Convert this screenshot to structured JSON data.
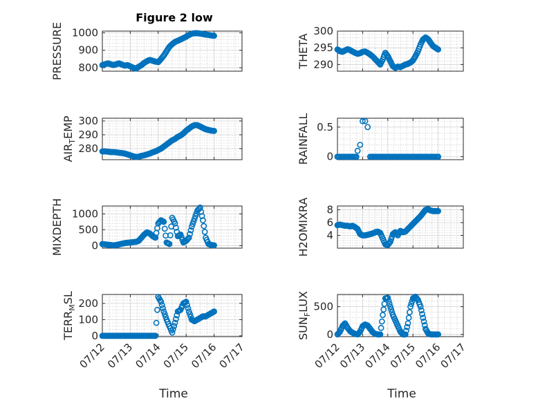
{
  "figure": {
    "title": "Figure 2 low",
    "marker_color": "#0072BD",
    "axis_color": "#262626",
    "grid_color": "#cfcfcf"
  },
  "chart_data": [
    {
      "type": "scatter",
      "panel": "top-left",
      "ylabel": "PRESSURE",
      "xlim": [
        "07/12",
        "07/17"
      ],
      "ylim": [
        780,
        1010
      ],
      "yticks": [
        800,
        900,
        1000
      ],
      "x_tick_labels": [],
      "grid": true,
      "x": [
        12.0,
        12.1,
        12.2,
        12.3,
        12.4,
        12.5,
        12.6,
        12.7,
        12.8,
        12.9,
        13.0,
        13.1,
        13.2,
        13.3,
        13.4,
        13.5,
        13.6,
        13.7,
        13.8,
        13.9,
        14.0,
        14.1,
        14.2,
        14.3,
        14.4,
        14.5,
        14.6,
        14.7,
        14.8,
        14.9,
        15.0,
        15.1,
        15.2,
        15.3,
        15.4,
        15.5,
        15.6,
        15.7,
        15.8,
        15.9,
        16.0
      ],
      "y": [
        815,
        820,
        825,
        820,
        815,
        820,
        825,
        818,
        812,
        815,
        808,
        800,
        795,
        805,
        815,
        828,
        838,
        845,
        840,
        835,
        832,
        850,
        870,
        895,
        920,
        935,
        948,
        955,
        962,
        970,
        978,
        988,
        995,
        998,
        998,
        996,
        993,
        990,
        988,
        985,
        983
      ]
    },
    {
      "type": "scatter",
      "panel": "top-right",
      "ylabel": "THETA",
      "xlim": [
        "07/12",
        "07/17"
      ],
      "ylim": [
        288,
        300
      ],
      "yticks": [
        290,
        295,
        300
      ],
      "x_tick_labels": [],
      "grid": true,
      "x": [
        12.0,
        12.1,
        12.2,
        12.3,
        12.4,
        12.5,
        12.6,
        12.7,
        12.8,
        12.9,
        13.0,
        13.1,
        13.2,
        13.3,
        13.4,
        13.5,
        13.6,
        13.7,
        13.8,
        13.9,
        14.0,
        14.1,
        14.2,
        14.3,
        14.4,
        14.5,
        14.6,
        14.7,
        14.8,
        14.9,
        15.0,
        15.1,
        15.2,
        15.3,
        15.4,
        15.5,
        15.6,
        15.7,
        15.8,
        15.9,
        16.0
      ],
      "y": [
        294.5,
        294.0,
        293.8,
        294.2,
        294.6,
        294.3,
        293.9,
        293.5,
        293.2,
        293.4,
        293.8,
        293.9,
        293.5,
        293.0,
        292.4,
        291.6,
        290.8,
        290.0,
        291.5,
        293.5,
        292.5,
        291.0,
        289.5,
        289.0,
        289.4,
        289.2,
        289.6,
        290.0,
        290.2,
        290.6,
        291.2,
        292.5,
        294.0,
        296.0,
        297.5,
        298.1,
        297.6,
        296.5,
        295.5,
        295.0,
        294.5
      ]
    },
    {
      "type": "scatter",
      "panel": "second-left",
      "ylabel": "AIR_TEMP",
      "xlim": [
        "07/12",
        "07/17"
      ],
      "ylim": [
        272,
        302
      ],
      "yticks": [
        280,
        290,
        300
      ],
      "x_tick_labels": [],
      "grid": true,
      "x": [
        12.0,
        12.1,
        12.2,
        12.3,
        12.4,
        12.5,
        12.6,
        12.7,
        12.8,
        12.9,
        13.0,
        13.1,
        13.2,
        13.3,
        13.4,
        13.5,
        13.6,
        13.7,
        13.8,
        13.9,
        14.0,
        14.1,
        14.2,
        14.3,
        14.4,
        14.5,
        14.6,
        14.7,
        14.8,
        14.9,
        15.0,
        15.1,
        15.2,
        15.3,
        15.4,
        15.5,
        15.6,
        15.7,
        15.8,
        15.9,
        16.0
      ],
      "y": [
        278.0,
        278.0,
        277.8,
        277.5,
        277.5,
        277.3,
        277.0,
        276.8,
        276.5,
        275.8,
        275.2,
        274.5,
        274.0,
        274.2,
        274.8,
        275.2,
        275.8,
        276.5,
        277.3,
        278.0,
        279.0,
        280.0,
        281.5,
        283.0,
        284.5,
        286.0,
        287.0,
        288.5,
        289.5,
        291.0,
        293.0,
        294.5,
        296.0,
        297.0,
        297.0,
        296.0,
        295.0,
        294.0,
        293.5,
        293.0,
        292.8
      ]
    },
    {
      "type": "scatter",
      "panel": "second-right",
      "ylabel": "RAINFALL",
      "xlim": [
        "07/12",
        "07/17"
      ],
      "ylim": [
        -0.05,
        0.65
      ],
      "yticks": [
        0,
        0.5
      ],
      "x_tick_labels": [],
      "grid": true,
      "x": [
        12.0,
        12.1,
        12.2,
        12.3,
        12.4,
        12.5,
        12.6,
        12.7,
        12.8,
        12.9,
        13.0,
        13.1,
        13.2,
        13.3,
        13.4,
        13.5,
        13.6,
        13.7,
        13.8,
        13.9,
        14.0,
        14.1,
        14.2,
        14.3,
        14.4,
        14.5,
        14.6,
        14.7,
        14.8,
        14.9,
        15.0,
        15.1,
        15.2,
        15.3,
        15.4,
        15.5,
        15.6,
        15.7,
        15.8,
        15.9,
        16.0
      ],
      "y": [
        0,
        0,
        0,
        0,
        0,
        0,
        0,
        0,
        0.1,
        0.2,
        0.6,
        0.6,
        0.5,
        0,
        0,
        0,
        0,
        0,
        0,
        0,
        0,
        0,
        0,
        0,
        0,
        0,
        0,
        0,
        0,
        0,
        0,
        0,
        0,
        0,
        0,
        0,
        0,
        0,
        0,
        0,
        0
      ]
    },
    {
      "type": "scatter",
      "panel": "third-left",
      "ylabel": "MIXDEPTH",
      "xlim": [
        "07/12",
        "07/17"
      ],
      "ylim": [
        -80,
        1250
      ],
      "yticks": [
        0,
        500,
        1000
      ],
      "x_tick_labels": [],
      "grid": true,
      "x": [
        12.0,
        12.1,
        12.2,
        12.3,
        12.4,
        12.5,
        12.6,
        12.7,
        12.8,
        12.9,
        13.0,
        13.1,
        13.2,
        13.3,
        13.4,
        13.5,
        13.6,
        13.7,
        13.8,
        13.9,
        14.0,
        14.1,
        14.2,
        14.3,
        14.4,
        14.5,
        14.6,
        14.7,
        14.8,
        14.9,
        15.0,
        15.1,
        15.2,
        15.3,
        15.4,
        15.5,
        15.6,
        15.7,
        15.8,
        15.9,
        16.0
      ],
      "y": [
        50,
        40,
        30,
        20,
        10,
        20,
        40,
        60,
        80,
        90,
        100,
        110,
        120,
        150,
        250,
        350,
        420,
        380,
        300,
        250,
        700,
        800,
        750,
        100,
        50,
        880,
        700,
        300,
        350,
        100,
        150,
        250,
        600,
        850,
        1100,
        1200,
        800,
        250,
        50,
        20,
        10
      ]
    },
    {
      "type": "scatter",
      "panel": "third-right",
      "ylabel": "H2OMIXRA",
      "xlim": [
        "07/12",
        "07/17"
      ],
      "ylim": [
        2.0,
        8.6
      ],
      "yticks": [
        4,
        6,
        8
      ],
      "x_tick_labels": [],
      "grid": true,
      "x": [
        12.0,
        12.1,
        12.2,
        12.3,
        12.4,
        12.5,
        12.6,
        12.7,
        12.8,
        12.9,
        13.0,
        13.1,
        13.2,
        13.3,
        13.4,
        13.5,
        13.6,
        13.7,
        13.8,
        13.9,
        14.0,
        14.1,
        14.2,
        14.3,
        14.4,
        14.5,
        14.6,
        14.7,
        14.8,
        14.9,
        15.0,
        15.1,
        15.2,
        15.3,
        15.4,
        15.5,
        15.6,
        15.7,
        15.8,
        15.9,
        16.0
      ],
      "y": [
        5.6,
        5.7,
        5.6,
        5.5,
        5.5,
        5.4,
        5.5,
        5.3,
        5.0,
        4.2,
        4.0,
        4.0,
        4.1,
        4.2,
        4.3,
        4.5,
        4.6,
        4.4,
        3.5,
        2.6,
        2.5,
        3.0,
        4.2,
        4.5,
        4.0,
        4.7,
        4.5,
        4.6,
        5.0,
        5.4,
        5.8,
        6.2,
        6.6,
        7.0,
        7.5,
        8.0,
        8.1,
        7.9,
        7.8,
        7.8,
        7.8
      ]
    },
    {
      "type": "scatter",
      "panel": "bottom-left",
      "ylabel": "TERR_MSL",
      "xlim": [
        "07/12",
        "07/17"
      ],
      "ylim": [
        -5,
        255
      ],
      "yticks": [
        0,
        100,
        200
      ],
      "x_tick_labels": [
        "07/12",
        "07/13",
        "07/14",
        "07/15",
        "07/16",
        "07/17"
      ],
      "xlabel": "Time",
      "grid": true,
      "x": [
        12.0,
        12.1,
        12.2,
        12.3,
        12.4,
        12.5,
        12.6,
        12.7,
        12.8,
        12.9,
        13.0,
        13.1,
        13.2,
        13.3,
        13.4,
        13.5,
        13.6,
        13.7,
        13.8,
        13.9,
        14.0,
        14.1,
        14.2,
        14.3,
        14.4,
        14.5,
        14.6,
        14.7,
        14.8,
        14.9,
        15.0,
        15.1,
        15.2,
        15.3,
        15.4,
        15.5,
        15.6,
        15.7,
        15.8,
        15.9,
        16.0
      ],
      "y": [
        0,
        0,
        0,
        0,
        0,
        0,
        0,
        0,
        0,
        0,
        0,
        0,
        0,
        0,
        0,
        0,
        0,
        0,
        0,
        0,
        240,
        210,
        150,
        100,
        60,
        20,
        80,
        150,
        160,
        200,
        210,
        150,
        100,
        90,
        100,
        110,
        120,
        120,
        130,
        140,
        150
      ]
    },
    {
      "type": "scatter",
      "panel": "bottom-right",
      "ylabel": "SUN_FLUX",
      "xlim": [
        "07/12",
        "07/17"
      ],
      "ylim": [
        -40,
        720
      ],
      "yticks": [
        0,
        500
      ],
      "x_tick_labels": [
        "07/12",
        "07/13",
        "07/14",
        "07/15",
        "07/16",
        "07/17"
      ],
      "xlabel": "Time",
      "grid": true,
      "x": [
        12.0,
        12.1,
        12.2,
        12.3,
        12.4,
        12.5,
        12.6,
        12.7,
        12.8,
        12.9,
        13.0,
        13.1,
        13.2,
        13.3,
        13.4,
        13.5,
        13.6,
        13.7,
        13.8,
        13.9,
        14.0,
        14.1,
        14.2,
        14.3,
        14.4,
        14.5,
        14.6,
        14.7,
        14.8,
        14.9,
        15.0,
        15.1,
        15.2,
        15.3,
        15.4,
        15.5,
        15.6,
        15.7,
        15.8,
        15.9,
        16.0
      ],
      "y": [
        0,
        50,
        150,
        200,
        120,
        60,
        30,
        10,
        0,
        50,
        150,
        180,
        160,
        100,
        40,
        10,
        0,
        0,
        350,
        650,
        660,
        500,
        350,
        250,
        150,
        50,
        0,
        0,
        200,
        500,
        650,
        680,
        620,
        500,
        300,
        100,
        20,
        0,
        0,
        0,
        0
      ]
    }
  ]
}
